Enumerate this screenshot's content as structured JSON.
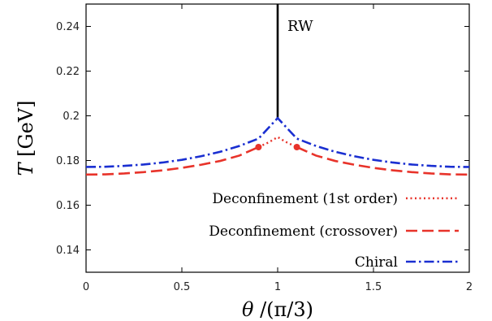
{
  "chart_data": {
    "type": "line",
    "xlabel_main": "θ",
    "xlabel_rest": " /(π/3)",
    "ylabel_main": "T",
    "ylabel_rest": " [GeV]",
    "xlim": [
      0,
      2
    ],
    "ylim": [
      0.13,
      0.25
    ],
    "xticks": [
      0,
      0.5,
      1,
      1.5,
      2
    ],
    "xtick_labels": [
      "0",
      "0.5",
      "1",
      "1.5",
      "2"
    ],
    "yticks": [
      0.14,
      0.16,
      0.18,
      0.2,
      0.22,
      0.24
    ],
    "ytick_labels": [
      "0.14",
      "0.16",
      "0.18",
      "0.2",
      "0.22",
      "0.24"
    ],
    "grid": false,
    "legend_position": "bottom-right",
    "annotation": "RW",
    "series": [
      {
        "name": "Deconfinement (1st order)",
        "color": "#e8332a",
        "style": "dotted",
        "x": [
          0.9,
          0.925,
          0.95,
          0.975,
          1.0,
          1.025,
          1.05,
          1.075,
          1.1
        ],
        "y": [
          0.186,
          0.187,
          0.188,
          0.1892,
          0.1905,
          0.1892,
          0.188,
          0.187,
          0.186
        ]
      },
      {
        "name": "Deconfinement (crossover)",
        "color": "#e8332a",
        "style": "dashed",
        "x": [
          0.0,
          0.1,
          0.2,
          0.3,
          0.4,
          0.5,
          0.6,
          0.7,
          0.8,
          0.9,
          1.1,
          1.2,
          1.3,
          1.4,
          1.5,
          1.6,
          1.7,
          1.8,
          1.9,
          2.0
        ],
        "y": [
          0.1737,
          0.1738,
          0.1742,
          0.1748,
          0.1756,
          0.1767,
          0.1781,
          0.1798,
          0.1822,
          0.186,
          0.186,
          0.1822,
          0.1798,
          0.1781,
          0.1767,
          0.1756,
          0.1748,
          0.1742,
          0.1738,
          0.1737
        ]
      },
      {
        "name": "Chiral",
        "color": "#1a2fd1",
        "style": "dashdot",
        "x": [
          0.0,
          0.1,
          0.2,
          0.3,
          0.4,
          0.5,
          0.6,
          0.7,
          0.8,
          0.9,
          1.0,
          1.1,
          1.2,
          1.3,
          1.4,
          1.5,
          1.6,
          1.7,
          1.8,
          1.9,
          2.0
        ],
        "y": [
          0.1771,
          0.1772,
          0.1776,
          0.1782,
          0.1791,
          0.1803,
          0.1819,
          0.1839,
          0.1865,
          0.1898,
          0.199,
          0.1898,
          0.1865,
          0.1839,
          0.1819,
          0.1803,
          0.1791,
          0.1782,
          0.1776,
          0.1772,
          0.1771
        ]
      }
    ],
    "rw_line": {
      "x": 1.0,
      "y_from": 0.199,
      "y_to": 0.25,
      "color": "#000000"
    },
    "critical_points": [
      {
        "x": 0.9,
        "y": 0.186
      },
      {
        "x": 1.1,
        "y": 0.186
      }
    ]
  }
}
